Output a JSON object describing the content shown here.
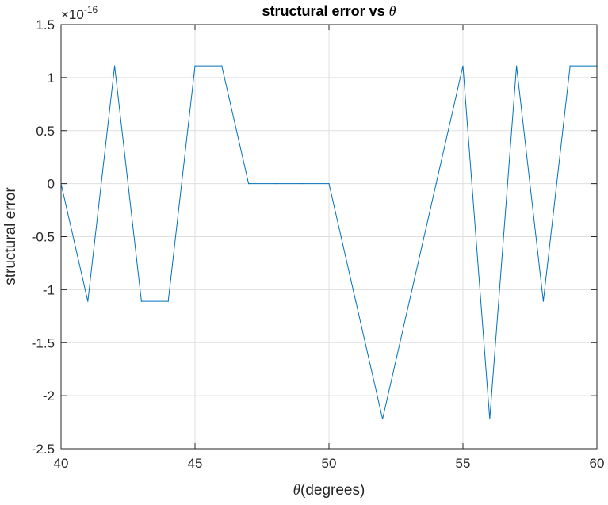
{
  "chart_data": {
    "type": "line",
    "title": "structural error vs θ",
    "title_prefix": "structural error vs",
    "title_symbol": "θ",
    "xlabel": "θ(degrees)",
    "xlabel_symbol": "θ",
    "xlabel_text": "(degrees)",
    "ylabel": "structural error",
    "exponent_label": {
      "base": "×10",
      "power": "-16"
    },
    "xlim": [
      40,
      60
    ],
    "ylim": [
      -2.5,
      1.5
    ],
    "xticks": [
      40,
      45,
      50,
      55,
      60
    ],
    "xtick_labels": [
      "40",
      "45",
      "50",
      "55",
      "60"
    ],
    "yticks": [
      1.5,
      1,
      0.5,
      0,
      -0.5,
      -1,
      -1.5,
      -2,
      -2.5
    ],
    "ytick_labels": [
      "1.5",
      "1",
      "0.5",
      "0",
      "-0.5",
      "-1",
      "-1.5",
      "-2",
      "-2.5"
    ],
    "grid": true,
    "series": [
      {
        "color": "#0072bd",
        "x": [
          40,
          41,
          42,
          43,
          44,
          45,
          46,
          47,
          48,
          49,
          50,
          51,
          52,
          53,
          54,
          55,
          56,
          57,
          58,
          59,
          60
        ],
        "y": [
          0,
          -1.11,
          1.11,
          -1.11,
          -1.11,
          1.11,
          1.11,
          0,
          0,
          0,
          0,
          -1.11,
          -2.22,
          -1.11,
          0,
          1.11,
          -2.22,
          1.11,
          -1.11,
          1.11,
          1.11
        ]
      }
    ]
  }
}
